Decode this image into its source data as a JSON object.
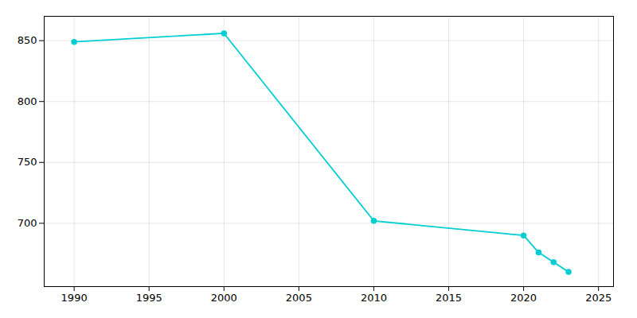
{
  "chart_data": {
    "type": "line",
    "x": [
      1990,
      2000,
      2010,
      2020,
      2021,
      2022,
      2023
    ],
    "values": [
      849,
      856,
      702,
      690,
      676,
      668,
      660
    ],
    "color": "#00CED1",
    "marker": "circle",
    "xlim": [
      1988,
      2026
    ],
    "ylim": [
      648,
      870
    ],
    "xticks": [
      1990,
      1995,
      2000,
      2005,
      2010,
      2015,
      2020,
      2025
    ],
    "yticks": [
      700,
      750,
      800,
      850
    ],
    "grid": true
  }
}
